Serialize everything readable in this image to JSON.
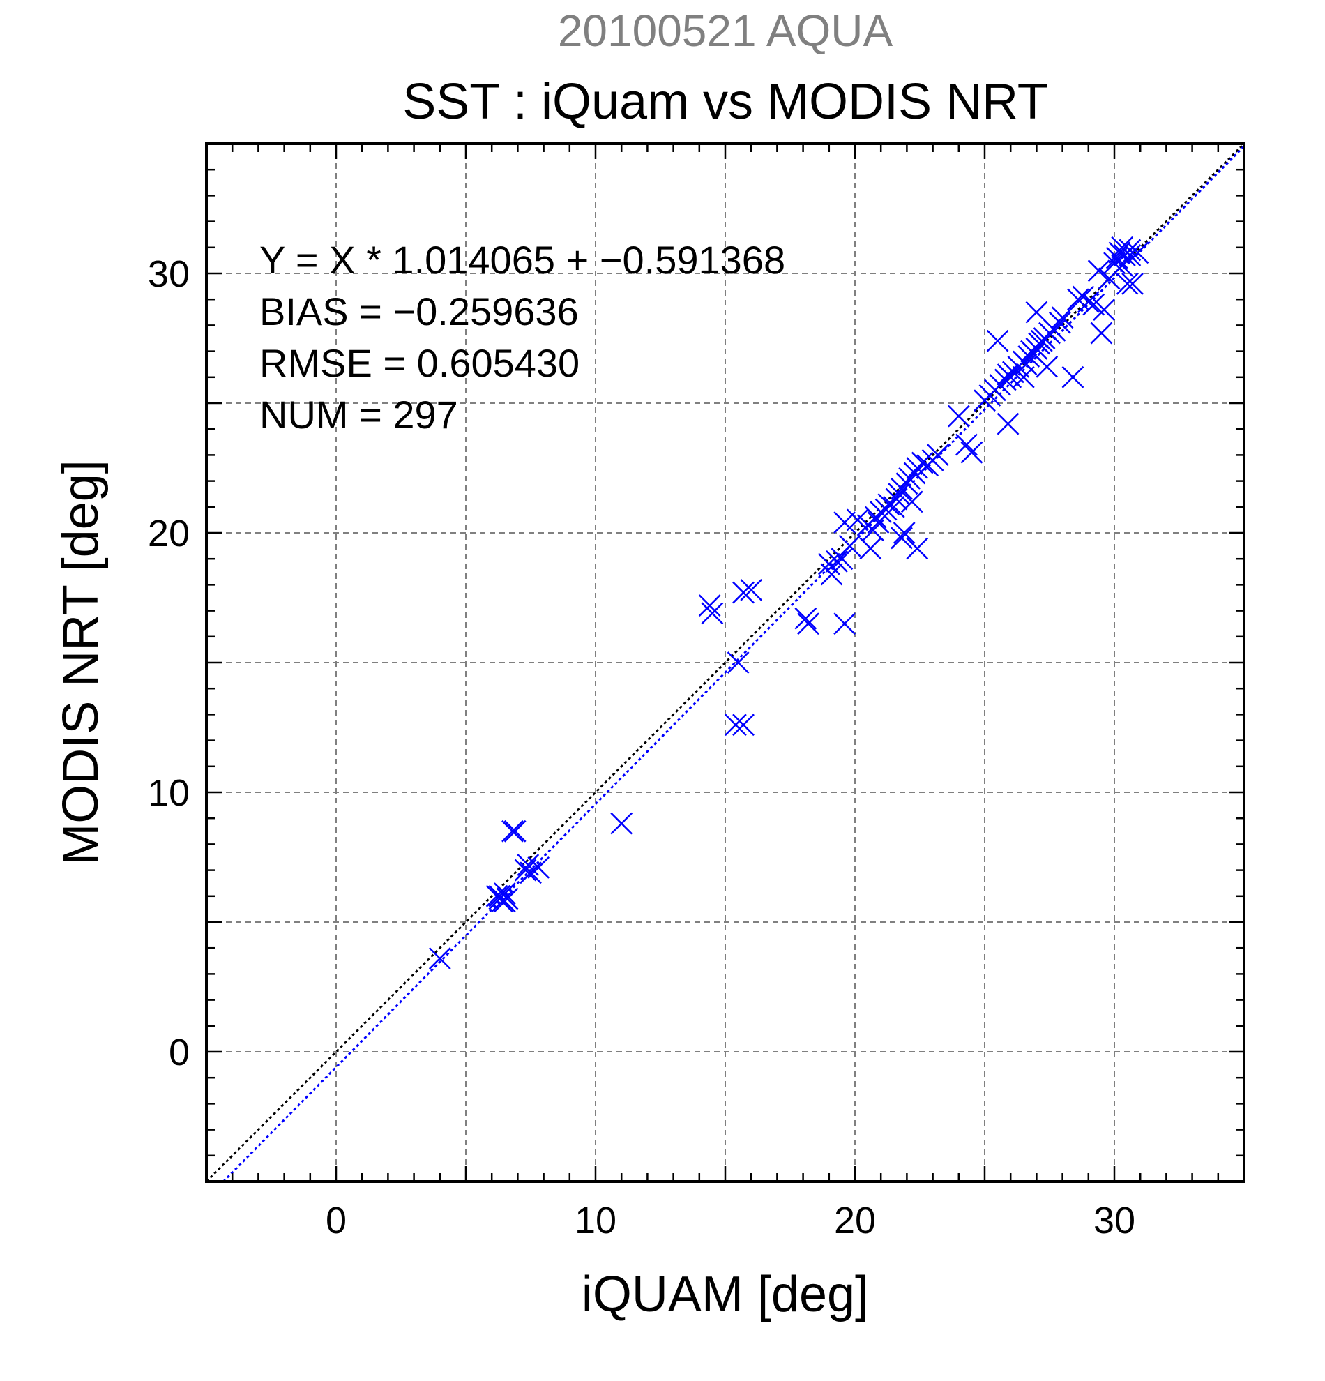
{
  "chart_data": {
    "type": "scatter",
    "supertitle": "20100521 AQUA",
    "title": "SST : iQuam vs MODIS NRT",
    "xlabel": "iQUAM [deg]",
    "ylabel": "MODIS NRT [deg]",
    "xlim": [
      -5,
      35
    ],
    "ylim": [
      -5,
      35
    ],
    "xticks": [
      0,
      10,
      20,
      30
    ],
    "yticks": [
      0,
      10,
      20,
      30
    ],
    "xtick_labels": [
      "0",
      "10",
      "20",
      "30"
    ],
    "ytick_labels": [
      "0",
      "10",
      "20",
      "30"
    ],
    "grid": true,
    "grid_step": 5,
    "minor_tick_step": 1,
    "stats_lines": [
      "Y = X * 1.014065 + −0.591368",
      "BIAS = −0.259636",
      "RMSE = 0.605430",
      "NUM = 297"
    ],
    "fit": {
      "slope": 1.014065,
      "intercept": -0.591368,
      "color": "#0000ff"
    },
    "identity_line": {
      "color": "#000000"
    },
    "marker": "x",
    "series": [
      {
        "color": "#0000ff",
        "x": [
          4.0,
          6.2,
          6.3,
          6.4,
          6.5,
          6.6,
          6.3,
          6.5,
          6.8,
          6.9,
          7.3,
          7.5,
          7.8,
          7.4,
          11.0,
          14.4,
          14.5,
          15.5,
          15.4,
          15.7,
          15.7,
          16.0,
          18.1,
          18.2,
          19.0,
          19.1,
          19.3,
          19.6,
          19.6,
          19.5,
          19.8,
          20.1,
          20.5,
          20.7,
          20.6,
          20.8,
          20.9,
          21.0,
          21.2,
          21.3,
          21.5,
          21.6,
          21.7,
          21.8,
          22.0,
          22.1,
          22.3,
          22.4,
          22.6,
          22.8,
          23.0,
          23.2,
          21.8,
          21.9,
          22.4,
          22.2,
          24.0,
          24.5,
          24.3,
          25.0,
          25.2,
          25.4,
          25.6,
          25.8,
          25.9,
          26.0,
          26.1,
          26.3,
          26.5,
          26.6,
          26.7,
          26.8,
          26.9,
          27.0,
          27.1,
          27.2,
          27.3,
          27.5,
          27.7,
          27.9,
          25.5,
          25.9,
          27.0,
          26.5,
          27.4,
          28.0,
          28.4,
          28.6,
          28.8,
          29.0,
          29.2,
          29.5,
          29.6,
          29.4,
          29.8,
          30.0,
          30.1,
          30.2,
          30.3,
          30.4,
          30.5,
          30.6,
          30.7,
          30.9,
          30.3,
          30.6
        ],
        "y": [
          3.6,
          6.0,
          5.9,
          5.8,
          6.1,
          5.9,
          6.0,
          5.8,
          8.5,
          8.5,
          7.0,
          6.9,
          7.1,
          7.2,
          8.8,
          17.2,
          16.9,
          15.0,
          12.6,
          12.6,
          17.7,
          17.8,
          16.7,
          16.5,
          18.8,
          18.4,
          18.9,
          16.5,
          20.4,
          19.0,
          19.5,
          20.5,
          20.3,
          20.1,
          19.4,
          20.6,
          20.4,
          20.8,
          20.9,
          21.1,
          21.0,
          21.3,
          21.5,
          21.7,
          21.9,
          22.1,
          22.3,
          22.5,
          22.7,
          22.6,
          22.8,
          23.0,
          19.8,
          20.0,
          19.4,
          21.2,
          24.5,
          23.1,
          23.4,
          25.1,
          25.3,
          25.5,
          25.7,
          25.9,
          26.1,
          26.0,
          26.2,
          26.4,
          26.6,
          26.5,
          26.8,
          27.0,
          26.9,
          27.1,
          27.3,
          27.4,
          27.5,
          27.7,
          27.8,
          28.1,
          27.4,
          24.2,
          28.5,
          26.0,
          26.4,
          28.3,
          26.0,
          29.0,
          29.1,
          28.9,
          28.8,
          27.7,
          28.6,
          30.1,
          29.8,
          30.4,
          30.6,
          30.8,
          31.0,
          30.7,
          29.6,
          30.9,
          29.6,
          30.8,
          30.3,
          30.7
        ]
      }
    ]
  }
}
